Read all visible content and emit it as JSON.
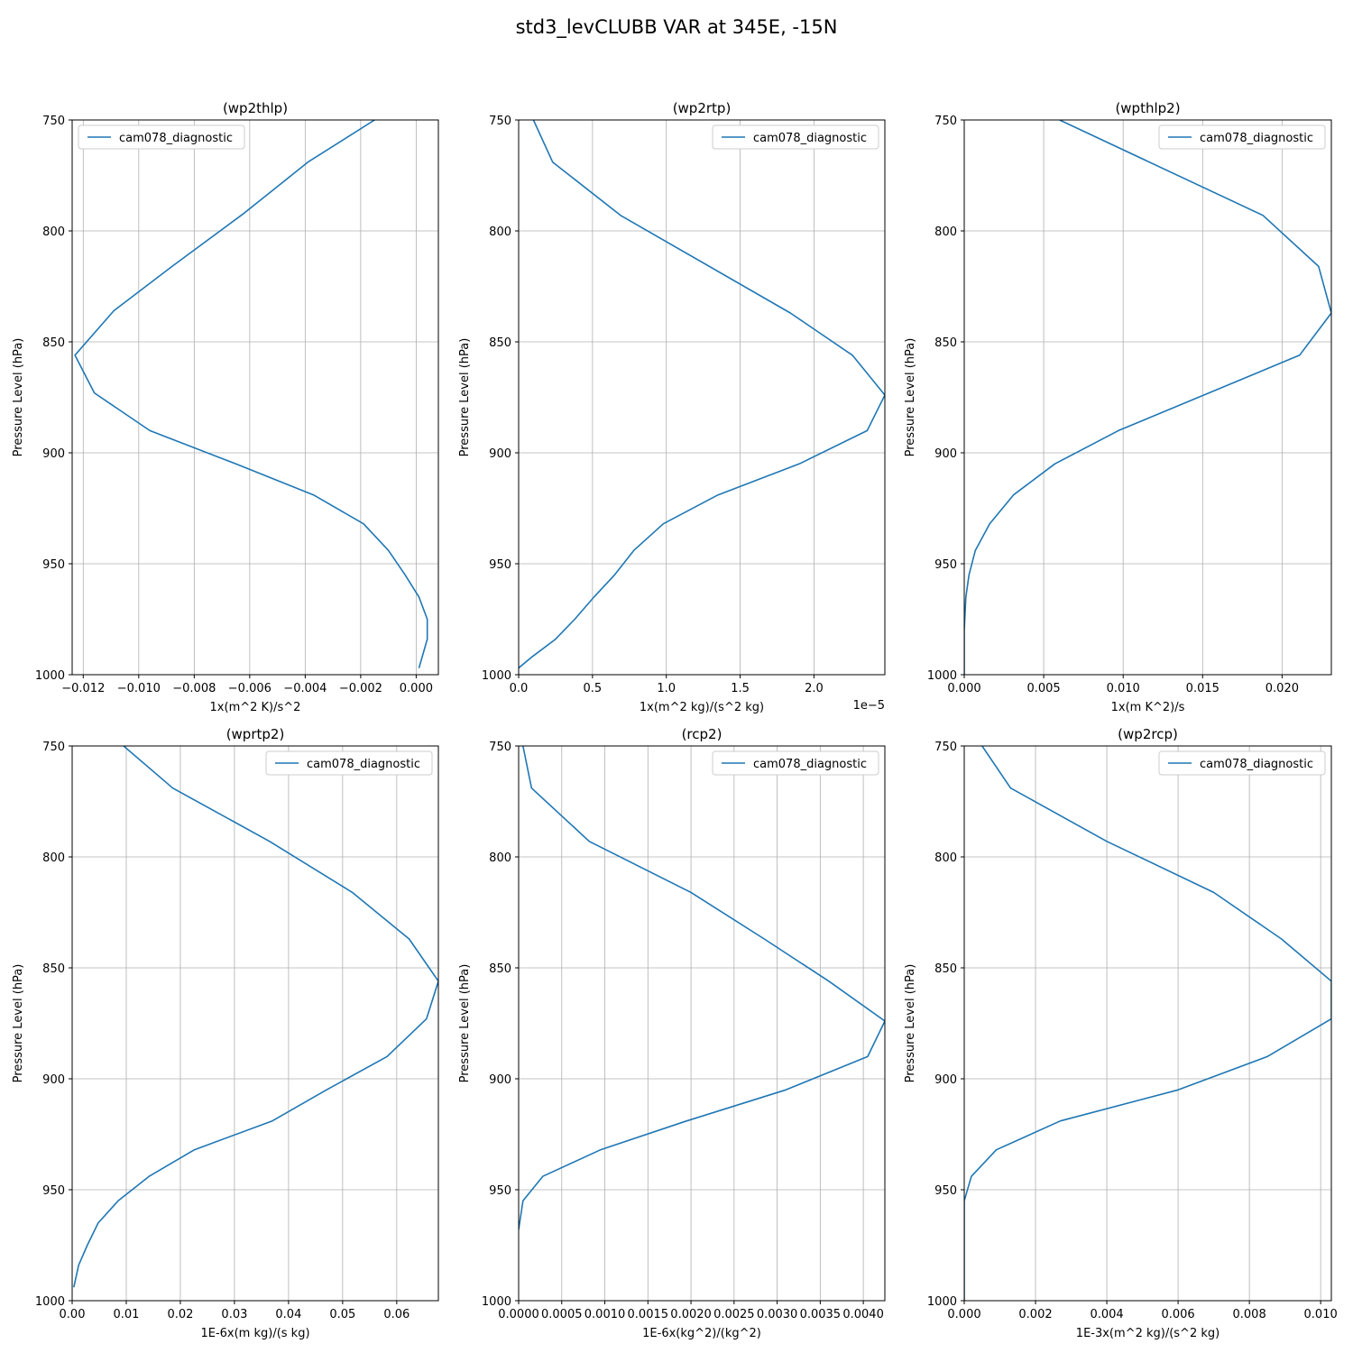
{
  "figure": {
    "title": "std3_levCLUBB VAR at 345E, -15N"
  },
  "chart_data": [
    {
      "type": "line",
      "title": "(wp2thlp)",
      "xlabel": "1x(m^2 K)/s^2",
      "ylabel": "Pressure Level (hPa)",
      "xlim": [
        -0.0124,
        0.0008
      ],
      "ylim": [
        1000,
        750
      ],
      "xticks": [
        -0.012,
        -0.01,
        -0.008,
        -0.006,
        -0.004,
        -0.002,
        0.0
      ],
      "xtick_labels": [
        "−0.012",
        "−0.010",
        "−0.008",
        "−0.006",
        "−0.004",
        "−0.002",
        "0.000"
      ],
      "yticks": [
        750,
        800,
        850,
        900,
        950,
        1000
      ],
      "ytick_labels": [
        "750",
        "800",
        "850",
        "900",
        "950",
        "1000"
      ],
      "offset_label": "",
      "legend": {
        "label": "cam078_diagnostic",
        "position": "upper-left"
      },
      "grid": true,
      "series": [
        {
          "name": "cam078_diagnostic",
          "x": [
            -0.0015,
            -0.0039,
            -0.0062,
            -0.0088,
            -0.0109,
            -0.0123,
            -0.0116,
            -0.0096,
            -0.0065,
            -0.0037,
            -0.0019,
            -0.001,
            -0.0004,
            0.0001,
            0.0004,
            0.0004,
            0.0001
          ],
          "y": [
            750,
            769,
            792,
            816,
            836,
            856,
            873,
            890,
            905,
            919,
            932,
            944,
            955,
            965,
            975,
            984,
            997
          ]
        }
      ]
    },
    {
      "type": "line",
      "title": "(wp2rtp)",
      "xlabel": "1x(m^2 kg)/(s^2 kg)",
      "ylabel": "Pressure Level (hPa)",
      "xlim": [
        0.0,
        2.48
      ],
      "ylim": [
        1000,
        750
      ],
      "xticks": [
        0.0,
        0.5,
        1.0,
        1.5,
        2.0
      ],
      "xtick_labels": [
        "0.0",
        "0.5",
        "1.0",
        "1.5",
        "2.0"
      ],
      "yticks": [
        750,
        800,
        850,
        900,
        950,
        1000
      ],
      "ytick_labels": [
        "750",
        "800",
        "850",
        "900",
        "950",
        "1000"
      ],
      "offset_label": "1e−5",
      "legend": {
        "label": "cam078_diagnostic",
        "position": "upper-right"
      },
      "grid": true,
      "series": [
        {
          "name": "cam078_diagnostic",
          "x": [
            0.1,
            0.23,
            0.69,
            1.84,
            2.26,
            2.48,
            2.36,
            1.9,
            1.35,
            0.98,
            0.78,
            0.65,
            0.51,
            0.38,
            0.25,
            0.09,
            0.0
          ],
          "y": [
            750,
            769,
            793,
            837,
            856,
            874,
            890,
            905,
            919,
            932,
            944,
            955,
            965,
            975,
            984,
            992,
            997
          ]
        }
      ]
    },
    {
      "type": "line",
      "title": "(wpthlp2)",
      "xlabel": "1x(m K^2)/s",
      "ylabel": "Pressure Level (hPa)",
      "xlim": [
        0.0,
        0.0231
      ],
      "ylim": [
        1000,
        750
      ],
      "xticks": [
        0.0,
        0.005,
        0.01,
        0.015,
        0.02
      ],
      "xtick_labels": [
        "0.000",
        "0.005",
        "0.010",
        "0.015",
        "0.020"
      ],
      "yticks": [
        750,
        800,
        850,
        900,
        950,
        1000
      ],
      "ytick_labels": [
        "750",
        "800",
        "850",
        "900",
        "950",
        "1000"
      ],
      "offset_label": "",
      "legend": {
        "label": "cam078_diagnostic",
        "position": "upper-right"
      },
      "grid": true,
      "series": [
        {
          "name": "cam078_diagnostic",
          "x": [
            0.006,
            0.0188,
            0.0223,
            0.0231,
            0.0211,
            0.0154,
            0.0097,
            0.0057,
            0.0031,
            0.0016,
            0.0007,
            0.0003,
            0.0001,
            0.0,
            0.0
          ],
          "y": [
            750,
            793,
            816,
            837,
            856,
            873,
            890,
            905,
            919,
            932,
            944,
            955,
            965,
            980,
            1000
          ]
        }
      ]
    },
    {
      "type": "line",
      "title": "(wprtp2)",
      "xlabel": "1E-6x(m kg)/(s kg)",
      "ylabel": "Pressure Level (hPa)",
      "xlim": [
        0.0,
        0.0677
      ],
      "ylim": [
        1000,
        750
      ],
      "xticks": [
        0.0,
        0.01,
        0.02,
        0.03,
        0.04,
        0.05,
        0.06
      ],
      "xtick_labels": [
        "0.00",
        "0.01",
        "0.02",
        "0.03",
        "0.04",
        "0.05",
        "0.06"
      ],
      "yticks": [
        750,
        800,
        850,
        900,
        950,
        1000
      ],
      "ytick_labels": [
        "750",
        "800",
        "850",
        "900",
        "950",
        "1000"
      ],
      "offset_label": "",
      "legend": {
        "label": "cam078_diagnostic",
        "position": "upper-right"
      },
      "grid": true,
      "series": [
        {
          "name": "cam078_diagnostic",
          "x": [
            0.0095,
            0.0186,
            0.0365,
            0.0518,
            0.0623,
            0.0677,
            0.0655,
            0.0582,
            0.047,
            0.037,
            0.0226,
            0.0142,
            0.0085,
            0.0048,
            0.0028,
            0.0012,
            0.0003
          ],
          "y": [
            750,
            769,
            793,
            816,
            837,
            856,
            873,
            890,
            905,
            919,
            932,
            944,
            955,
            965,
            975,
            984,
            994
          ]
        }
      ]
    },
    {
      "type": "line",
      "title": "(rcp2)",
      "xlabel": "1E-6x(kg^2)/(kg^2)",
      "ylabel": "Pressure Level (hPa)",
      "xlim": [
        0.0,
        0.00425
      ],
      "ylim": [
        1000,
        750
      ],
      "xticks": [
        0.0,
        0.0005,
        0.001,
        0.0015,
        0.002,
        0.0025,
        0.003,
        0.0035,
        0.004
      ],
      "xtick_labels": [
        "0.0000",
        "0.0005",
        "0.0010",
        "0.0015",
        "0.0020",
        "0.0025",
        "0.0030",
        "0.0035",
        "0.0040"
      ],
      "yticks": [
        750,
        800,
        850,
        900,
        950,
        1000
      ],
      "ytick_labels": [
        "750",
        "800",
        "850",
        "900",
        "950",
        "1000"
      ],
      "offset_label": "",
      "legend": {
        "label": "cam078_diagnostic",
        "position": "upper-right"
      },
      "grid": true,
      "series": [
        {
          "name": "cam078_diagnostic",
          "x": [
            5e-05,
            0.00015,
            0.00082,
            0.002,
            0.00285,
            0.0036,
            0.00425,
            0.00405,
            0.0031,
            0.00195,
            0.00095,
            0.00028,
            5e-05,
            0.0
          ],
          "y": [
            750,
            769,
            793,
            816,
            837,
            856,
            874,
            890,
            905,
            919,
            932,
            944,
            955,
            968
          ]
        }
      ]
    },
    {
      "type": "line",
      "title": "(wp2rcp)",
      "xlabel": "1E-3x(m^2 kg)/(s^2 kg)",
      "ylabel": "Pressure Level (hPa)",
      "xlim": [
        0.0,
        0.0103
      ],
      "ylim": [
        1000,
        750
      ],
      "xticks": [
        0.0,
        0.002,
        0.004,
        0.006,
        0.008,
        0.01
      ],
      "xtick_labels": [
        "0.000",
        "0.002",
        "0.004",
        "0.006",
        "0.008",
        "0.010"
      ],
      "yticks": [
        750,
        800,
        850,
        900,
        950,
        1000
      ],
      "ytick_labels": [
        "750",
        "800",
        "850",
        "900",
        "950",
        "1000"
      ],
      "offset_label": "",
      "legend": {
        "label": "cam078_diagnostic",
        "position": "upper-right"
      },
      "grid": true,
      "series": [
        {
          "name": "cam078_diagnostic",
          "x": [
            0.0005,
            0.0013,
            0.004,
            0.007,
            0.0089,
            0.0103,
            0.0103,
            0.0085,
            0.006,
            0.0027,
            0.0009,
            0.0002,
            0.0,
            0.0
          ],
          "y": [
            750,
            769,
            793,
            816,
            837,
            856,
            873,
            890,
            905,
            919,
            932,
            944,
            955,
            1000
          ]
        }
      ]
    }
  ]
}
